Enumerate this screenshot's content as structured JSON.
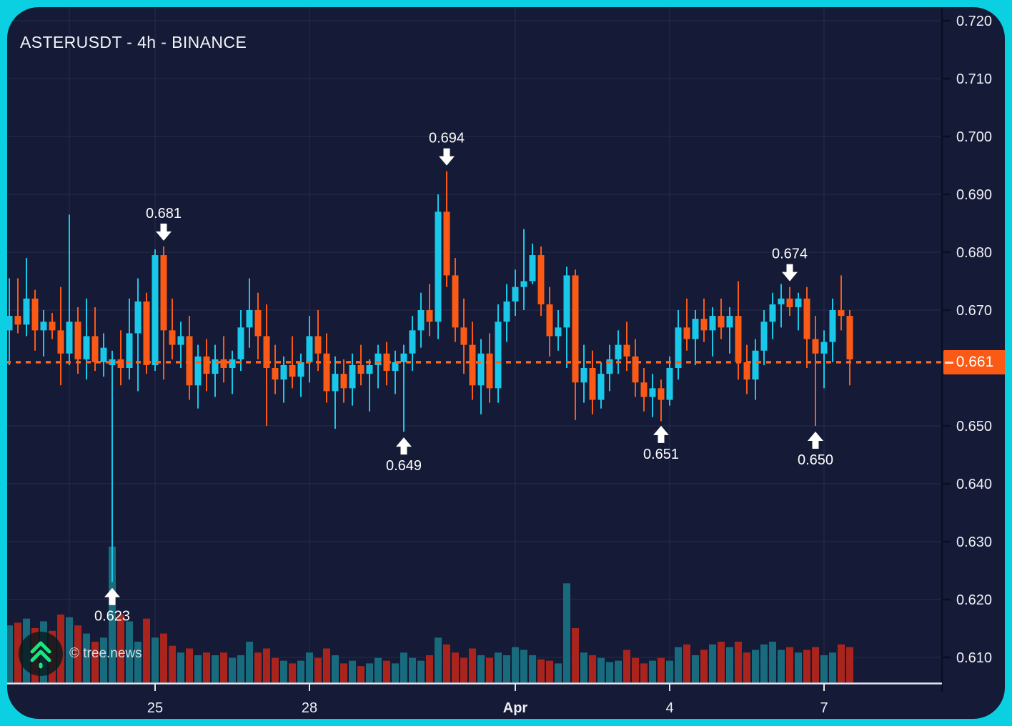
{
  "title": "ASTERUSDT - 4h - BINANCE",
  "watermark": {
    "text": "© tree.news",
    "icon": "double-chevron-up-icon",
    "icon_color": "#17e87e"
  },
  "colors": {
    "frame": "#0bd0e1",
    "panel_bg": "#151a36",
    "grid": "#272c4d",
    "axis_line": "#0a0e24",
    "axis_text": "#eef0f6",
    "baseline": "#e4e6ef",
    "candle_up": "#19c8e8",
    "candle_down": "#fa5a15",
    "volume_up": "#186b7d",
    "volume_down": "#a8241d",
    "price_line": "#f9641a",
    "price_label_bg": "#fa5a15",
    "annotation": "#ffffff"
  },
  "chart_data": {
    "type": "candlestick",
    "symbol": "ASTERUSDT",
    "interval": "4h",
    "exchange": "BINANCE",
    "title": "ASTERUSDT - 4h - BINANCE",
    "grid": true,
    "y_axis": {
      "side": "right",
      "min": 0.607,
      "max": 0.7225,
      "ticks": [
        {
          "label": "0.720",
          "value": 0.72
        },
        {
          "label": "0.710",
          "value": 0.71
        },
        {
          "label": "0.700",
          "value": 0.7
        },
        {
          "label": "0.690",
          "value": 0.69
        },
        {
          "label": "0.680",
          "value": 0.68
        },
        {
          "label": "0.670",
          "value": 0.67
        },
        {
          "label": "0.650",
          "value": 0.65
        },
        {
          "label": "0.640",
          "value": 0.64
        },
        {
          "label": "0.630",
          "value": 0.63
        },
        {
          "label": "0.620",
          "value": 0.62
        },
        {
          "label": "0.610",
          "value": 0.61
        }
      ]
    },
    "x_axis": {
      "ticks": [
        {
          "label": "25",
          "index": 17,
          "bold": false
        },
        {
          "label": "28",
          "index": 35,
          "bold": false
        },
        {
          "label": "Apr",
          "index": 59,
          "bold": true
        },
        {
          "label": "4",
          "index": 77,
          "bold": false
        },
        {
          "label": "7",
          "index": 95,
          "bold": false
        }
      ],
      "extra_gridlines": [
        7
      ]
    },
    "price_line": {
      "value": 0.661,
      "label": "0.661"
    },
    "annotations": [
      {
        "text": "0.681",
        "index": 18,
        "price": 0.681,
        "dir": "down"
      },
      {
        "text": "0.694",
        "index": 51,
        "price": 0.694,
        "dir": "down"
      },
      {
        "text": "0.674",
        "index": 91,
        "price": 0.674,
        "dir": "down"
      },
      {
        "text": "0.623",
        "index": 12,
        "price": 0.623,
        "dir": "up"
      },
      {
        "text": "0.649",
        "index": 46,
        "price": 0.649,
        "dir": "up"
      },
      {
        "text": "0.651",
        "index": 76,
        "price": 0.651,
        "dir": "up"
      },
      {
        "text": "0.650",
        "index": 94,
        "price": 0.65,
        "dir": "up"
      }
    ],
    "candles": [
      [
        0.6665,
        0.6755,
        0.6605,
        0.669
      ],
      [
        0.669,
        0.6755,
        0.666,
        0.6675
      ],
      [
        0.6675,
        0.679,
        0.6655,
        0.672
      ],
      [
        0.672,
        0.6735,
        0.663,
        0.6665
      ],
      [
        0.6665,
        0.67,
        0.662,
        0.668
      ],
      [
        0.668,
        0.6695,
        0.665,
        0.6665
      ],
      [
        0.6665,
        0.674,
        0.657,
        0.6625
      ],
      [
        0.6625,
        0.6865,
        0.6605,
        0.668
      ],
      [
        0.668,
        0.6705,
        0.659,
        0.6615
      ],
      [
        0.6615,
        0.672,
        0.658,
        0.6655
      ],
      [
        0.6655,
        0.6705,
        0.6595,
        0.661
      ],
      [
        0.661,
        0.666,
        0.6585,
        0.6635
      ],
      [
        0.6605,
        0.663,
        0.623,
        0.6615
      ],
      [
        0.6615,
        0.6665,
        0.657,
        0.66
      ],
      [
        0.66,
        0.672,
        0.658,
        0.666
      ],
      [
        0.666,
        0.6755,
        0.656,
        0.6715
      ],
      [
        0.6715,
        0.673,
        0.659,
        0.6605
      ],
      [
        0.6605,
        0.6805,
        0.6595,
        0.6795
      ],
      [
        0.6795,
        0.681,
        0.658,
        0.6665
      ],
      [
        0.6665,
        0.672,
        0.6615,
        0.664
      ],
      [
        0.664,
        0.668,
        0.66,
        0.6655
      ],
      [
        0.6655,
        0.669,
        0.6545,
        0.657
      ],
      [
        0.657,
        0.664,
        0.653,
        0.662
      ],
      [
        0.662,
        0.665,
        0.656,
        0.659
      ],
      [
        0.659,
        0.664,
        0.655,
        0.6615
      ],
      [
        0.6615,
        0.6655,
        0.6575,
        0.66
      ],
      [
        0.66,
        0.663,
        0.6555,
        0.6615
      ],
      [
        0.6615,
        0.67,
        0.6595,
        0.667
      ],
      [
        0.667,
        0.6755,
        0.6635,
        0.67
      ],
      [
        0.67,
        0.673,
        0.6615,
        0.6655
      ],
      [
        0.6655,
        0.671,
        0.65,
        0.66
      ],
      [
        0.66,
        0.664,
        0.6555,
        0.658
      ],
      [
        0.658,
        0.662,
        0.654,
        0.6605
      ],
      [
        0.6605,
        0.6655,
        0.6565,
        0.6585
      ],
      [
        0.6585,
        0.6625,
        0.655,
        0.661
      ],
      [
        0.661,
        0.669,
        0.6575,
        0.6655
      ],
      [
        0.6655,
        0.67,
        0.6595,
        0.6625
      ],
      [
        0.6625,
        0.666,
        0.654,
        0.656
      ],
      [
        0.656,
        0.662,
        0.6495,
        0.659
      ],
      [
        0.659,
        0.6615,
        0.654,
        0.6565
      ],
      [
        0.6565,
        0.6625,
        0.6535,
        0.6605
      ],
      [
        0.6605,
        0.664,
        0.657,
        0.659
      ],
      [
        0.659,
        0.6615,
        0.6525,
        0.6605
      ],
      [
        0.6605,
        0.664,
        0.6565,
        0.6625
      ],
      [
        0.6625,
        0.6645,
        0.657,
        0.6595
      ],
      [
        0.6595,
        0.663,
        0.6555,
        0.661
      ],
      [
        0.661,
        0.664,
        0.649,
        0.6625
      ],
      [
        0.6625,
        0.669,
        0.6595,
        0.6665
      ],
      [
        0.6665,
        0.673,
        0.6635,
        0.67
      ],
      [
        0.67,
        0.6745,
        0.6655,
        0.668
      ],
      [
        0.668,
        0.69,
        0.665,
        0.687
      ],
      [
        0.687,
        0.694,
        0.674,
        0.676
      ],
      [
        0.676,
        0.679,
        0.6645,
        0.667
      ],
      [
        0.667,
        0.672,
        0.659,
        0.664
      ],
      [
        0.664,
        0.668,
        0.6545,
        0.657
      ],
      [
        0.657,
        0.665,
        0.652,
        0.6625
      ],
      [
        0.6625,
        0.666,
        0.654,
        0.6565
      ],
      [
        0.6565,
        0.671,
        0.654,
        0.668
      ],
      [
        0.668,
        0.6745,
        0.6645,
        0.6715
      ],
      [
        0.6715,
        0.677,
        0.669,
        0.674
      ],
      [
        0.674,
        0.684,
        0.67,
        0.675
      ],
      [
        0.675,
        0.6815,
        0.6745,
        0.6795
      ],
      [
        0.6795,
        0.681,
        0.669,
        0.671
      ],
      [
        0.671,
        0.674,
        0.662,
        0.6655
      ],
      [
        0.6655,
        0.67,
        0.663,
        0.667
      ],
      [
        0.667,
        0.6775,
        0.66,
        0.676
      ],
      [
        0.676,
        0.677,
        0.651,
        0.6575
      ],
      [
        0.6575,
        0.664,
        0.654,
        0.66
      ],
      [
        0.66,
        0.663,
        0.652,
        0.6545
      ],
      [
        0.6545,
        0.661,
        0.653,
        0.659
      ],
      [
        0.659,
        0.664,
        0.656,
        0.6615
      ],
      [
        0.6615,
        0.6665,
        0.659,
        0.664
      ],
      [
        0.664,
        0.668,
        0.6595,
        0.662
      ],
      [
        0.662,
        0.665,
        0.655,
        0.6575
      ],
      [
        0.6575,
        0.66,
        0.6525,
        0.655
      ],
      [
        0.655,
        0.659,
        0.6515,
        0.6565
      ],
      [
        0.6565,
        0.658,
        0.6508,
        0.6545
      ],
      [
        0.6545,
        0.662,
        0.6535,
        0.66
      ],
      [
        0.66,
        0.67,
        0.658,
        0.667
      ],
      [
        0.667,
        0.672,
        0.663,
        0.665
      ],
      [
        0.665,
        0.67,
        0.6605,
        0.6685
      ],
      [
        0.6685,
        0.672,
        0.6645,
        0.6665
      ],
      [
        0.6665,
        0.6705,
        0.662,
        0.669
      ],
      [
        0.669,
        0.672,
        0.665,
        0.667
      ],
      [
        0.667,
        0.6705,
        0.6625,
        0.669
      ],
      [
        0.669,
        0.675,
        0.658,
        0.661
      ],
      [
        0.661,
        0.664,
        0.6555,
        0.658
      ],
      [
        0.658,
        0.665,
        0.6545,
        0.663
      ],
      [
        0.663,
        0.67,
        0.6605,
        0.668
      ],
      [
        0.668,
        0.673,
        0.665,
        0.671
      ],
      [
        0.671,
        0.6745,
        0.667,
        0.672
      ],
      [
        0.672,
        0.674,
        0.669,
        0.6705
      ],
      [
        0.6705,
        0.673,
        0.6665,
        0.672
      ],
      [
        0.672,
        0.674,
        0.66,
        0.665
      ],
      [
        0.665,
        0.669,
        0.65,
        0.6625
      ],
      [
        0.6625,
        0.6665,
        0.6565,
        0.6645
      ],
      [
        0.6645,
        0.672,
        0.661,
        0.67
      ],
      [
        0.67,
        0.676,
        0.6665,
        0.669
      ],
      [
        0.669,
        0.67,
        0.657,
        0.6615
      ]
    ],
    "volume": [
      0.42,
      0.44,
      0.47,
      0.4,
      0.45,
      0.38,
      0.5,
      0.48,
      0.42,
      0.36,
      0.3,
      0.33,
      1.0,
      0.5,
      0.45,
      0.3,
      0.47,
      0.33,
      0.36,
      0.27,
      0.22,
      0.25,
      0.2,
      0.22,
      0.2,
      0.22,
      0.18,
      0.2,
      0.3,
      0.22,
      0.25,
      0.18,
      0.16,
      0.14,
      0.16,
      0.22,
      0.18,
      0.25,
      0.2,
      0.14,
      0.16,
      0.12,
      0.14,
      0.18,
      0.16,
      0.14,
      0.22,
      0.18,
      0.16,
      0.2,
      0.33,
      0.28,
      0.22,
      0.18,
      0.25,
      0.2,
      0.18,
      0.22,
      0.2,
      0.26,
      0.24,
      0.2,
      0.17,
      0.16,
      0.14,
      0.73,
      0.4,
      0.22,
      0.2,
      0.18,
      0.15,
      0.16,
      0.24,
      0.18,
      0.14,
      0.16,
      0.18,
      0.16,
      0.26,
      0.28,
      0.2,
      0.24,
      0.28,
      0.3,
      0.26,
      0.3,
      0.22,
      0.24,
      0.28,
      0.3,
      0.24,
      0.26,
      0.22,
      0.24,
      0.26,
      0.2,
      0.22,
      0.28,
      0.26
    ]
  }
}
